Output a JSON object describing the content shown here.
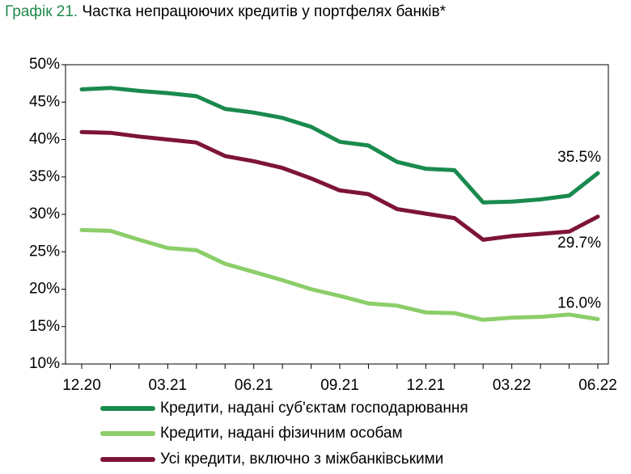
{
  "title": {
    "prefix": "Графік 21.",
    "text": "Частка непрацюючих кредитів у портфелях банків*"
  },
  "chart_data": {
    "type": "line",
    "title": "Графік 21. Частка непрацюючих кредитів у портфелях банків*",
    "x": [
      "12.20",
      "01.21",
      "02.21",
      "03.21",
      "04.21",
      "05.21",
      "06.21",
      "07.21",
      "08.21",
      "09.21",
      "10.21",
      "11.21",
      "12.21",
      "01.22",
      "02.22",
      "03.22",
      "04.22",
      "05.22",
      "06.22"
    ],
    "x_tick_labels": [
      "12.20",
      "03.21",
      "06.21",
      "09.21",
      "12.21",
      "03.22",
      "06.22"
    ],
    "x_tick_indices": [
      0,
      3,
      6,
      9,
      12,
      15,
      18
    ],
    "y_tick_labels": [
      "10%",
      "15%",
      "20%",
      "25%",
      "30%",
      "35%",
      "40%",
      "45%",
      "50%"
    ],
    "ylim": [
      10,
      50
    ],
    "y_step": 5,
    "grid": false,
    "legend_position": "bottom",
    "series": [
      {
        "name": "Кредити, надані суб'єктам господарювання",
        "color": "#1a8a4e",
        "values": [
          46.7,
          46.9,
          46.5,
          46.2,
          45.8,
          44.1,
          43.6,
          42.9,
          41.7,
          39.7,
          39.2,
          37.0,
          36.1,
          35.9,
          31.6,
          31.7,
          32.0,
          32.5,
          35.5
        ],
        "end_label": "35.5%"
      },
      {
        "name": "Кредити, надані фізичним особам",
        "color": "#8cce6a",
        "values": [
          27.9,
          27.8,
          26.6,
          25.5,
          25.2,
          23.4,
          22.3,
          21.2,
          20.0,
          19.1,
          18.1,
          17.8,
          16.9,
          16.8,
          15.9,
          16.2,
          16.3,
          16.6,
          16.0
        ],
        "end_label": "16.0%"
      },
      {
        "name": "Усі кредити, включно з міжбанківськими",
        "color": "#7d1436",
        "values": [
          41.0,
          40.9,
          40.4,
          40.0,
          39.6,
          37.8,
          37.1,
          36.2,
          34.8,
          33.2,
          32.7,
          30.7,
          30.1,
          29.5,
          26.6,
          27.1,
          27.4,
          27.7,
          29.7
        ],
        "end_label": "29.7%"
      }
    ]
  }
}
